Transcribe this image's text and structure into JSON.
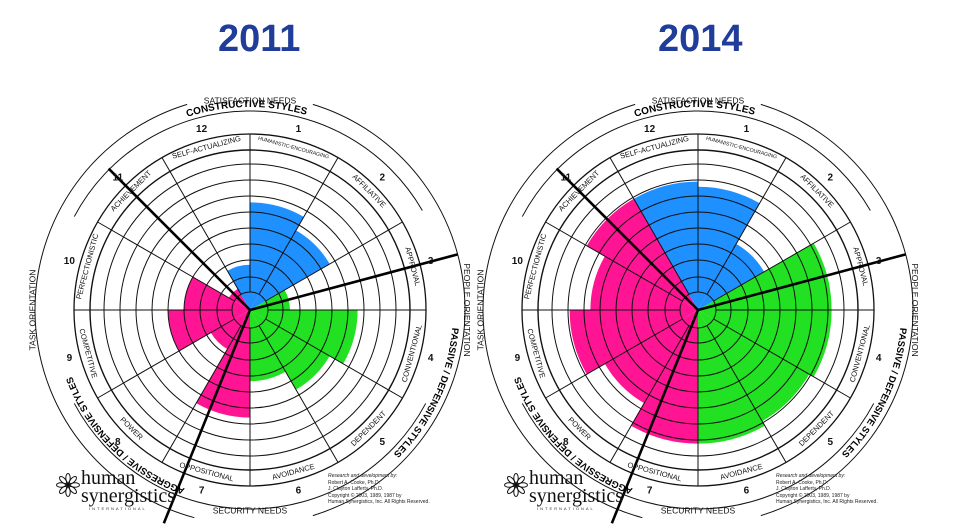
{
  "panels": [
    {
      "year": "2011",
      "values": [
        3.6,
        3.0,
        1.0,
        3.6,
        3.0,
        2.2,
        3.6,
        1.2,
        2.6,
        2.0,
        0.4,
        1.2
      ],
      "logo": {
        "line1": "human",
        "line2": "synergistics",
        "line3": "INTERNATIONAL"
      },
      "credits": [
        "Research and development by:",
        "Robert A. Cooke, Ph.D.",
        "J. Clayton Lafferty, Ph.D.",
        "Copyright © 2003, 1989, 1987 by",
        "Human Synergistics, Inc. All Rights Reserved."
      ]
    },
    {
      "year": "2014",
      "values": [
        4.2,
        2.4,
        4.6,
        4.6,
        4.4,
        4.6,
        4.6,
        3.6,
        4.4,
        3.6,
        4.4,
        4.4
      ],
      "logo": {
        "line1": "human",
        "line2": "synergistics",
        "line3": "INTERNATIONAL"
      },
      "credits": [
        "Research and development by:",
        "Robert A. Cooke, Ph.D.",
        "J. Clayton Lafferty, Ph.D.",
        "Copyright © 2003, 1989, 1987 by",
        "Human Synergistics, Inc. All Rights Reserved."
      ]
    }
  ],
  "styles": [
    {
      "num": "1",
      "name": "HUMANISTIC-ENCOURAGING"
    },
    {
      "num": "2",
      "name": "AFFILIATIVE"
    },
    {
      "num": "3",
      "name": "APPROVAL"
    },
    {
      "num": "4",
      "name": "CONVENTIONAL"
    },
    {
      "num": "5",
      "name": "DEPENDENT"
    },
    {
      "num": "6",
      "name": "AVOIDANCE"
    },
    {
      "num": "7",
      "name": "OPPOSITIONAL"
    },
    {
      "num": "8",
      "name": "POWER"
    },
    {
      "num": "9",
      "name": "COMPETITIVE"
    },
    {
      "num": "10",
      "name": "PERFECTIONISTIC"
    },
    {
      "num": "11",
      "name": "ACHIEVEMENT"
    },
    {
      "num": "12",
      "name": "SELF-ACTUALIZING"
    }
  ],
  "cluster_labels": {
    "constructive": "CONSTRUCTIVE STYLES",
    "passive": "PASSIVE / DEFENSIVE STYLES",
    "aggressive": "AGGRESSIVE / DEFENSIVE STYLES"
  },
  "orientation_labels": {
    "satisfaction": "SATISFACTION NEEDS",
    "security": "SECURITY NEEDS",
    "task": "TASK ORIENTATION",
    "people": "PEOPLE ORIENTATION"
  },
  "colors": {
    "constructive": "#1e90ff",
    "passive": "#22e022",
    "aggressive": "#ff1493",
    "year_text": "#1f3d99",
    "ink": "#111111"
  }
}
